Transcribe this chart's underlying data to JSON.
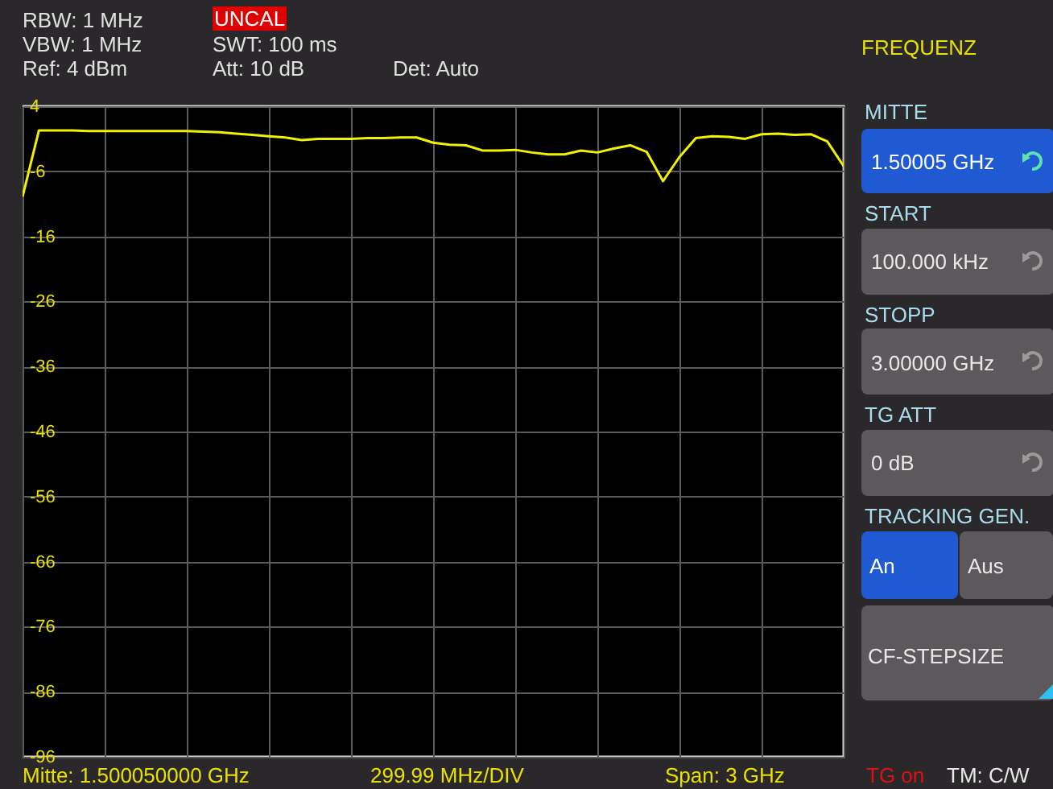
{
  "chart_data": {
    "type": "line",
    "categories": [
      null,
      null,
      null,
      null,
      null,
      null,
      null,
      null,
      null,
      null,
      null,
      null,
      null,
      null,
      null,
      null,
      null,
      null,
      null,
      null,
      null,
      null,
      null,
      null,
      null,
      null,
      null,
      null,
      null,
      null,
      null,
      null,
      null,
      null,
      null,
      null,
      null,
      null,
      null,
      null,
      null,
      null,
      null,
      null,
      null,
      null,
      null,
      null,
      null,
      null,
      null
    ],
    "series": [
      {
        "color": "#f2f200",
        "values": [
          -9.9,
          0.3,
          0.3,
          0.3,
          0.2,
          0.2,
          0.2,
          0.2,
          0.2,
          0.2,
          0.2,
          0.1,
          0.0,
          -0.2,
          -0.4,
          -0.6,
          -0.8,
          -1.2,
          -1.0,
          -1.0,
          -1.0,
          -0.9,
          -0.9,
          -0.8,
          -0.8,
          -1.6,
          -1.9,
          -2.0,
          -2.8,
          -2.8,
          -2.7,
          -3.1,
          -3.4,
          -3.4,
          -2.8,
          -3.1,
          -2.5,
          -2.0,
          -3.0,
          -7.5,
          -3.8,
          -0.9,
          -0.6,
          -0.7,
          -1.0,
          -0.3,
          -0.2,
          -0.4,
          -0.3,
          -1.4,
          -5.2
        ]
      }
    ],
    "ylim": [
      -96,
      4
    ],
    "yticks": [
      4,
      -6,
      -16,
      -26,
      -36,
      -46,
      -56,
      -66,
      -76,
      -86,
      -96
    ],
    "grid": true,
    "tick_labels": "y",
    "annotations": [
      "RBW: 1 MHz",
      "VBW: 1 MHz",
      "Ref: 4 dBm",
      "UNCAL",
      "SWT: 100 ms",
      "Att: 10 dB",
      "Det: Auto",
      "Mitte: 1.500050000 GHz",
      "299.99 MHz/DIV",
      "Span: 3 GHz",
      "TG on",
      "TM: C/W",
      "FREQUENZ",
      "MITTE",
      "1.50005 GHz",
      "START",
      "100.000 kHz",
      "STOPP",
      "3.00000 GHz",
      "TG ATT",
      "0 dB",
      "TRACKING GEN.",
      "An",
      "Aus",
      "CF-STEPSIZE"
    ]
  }
}
